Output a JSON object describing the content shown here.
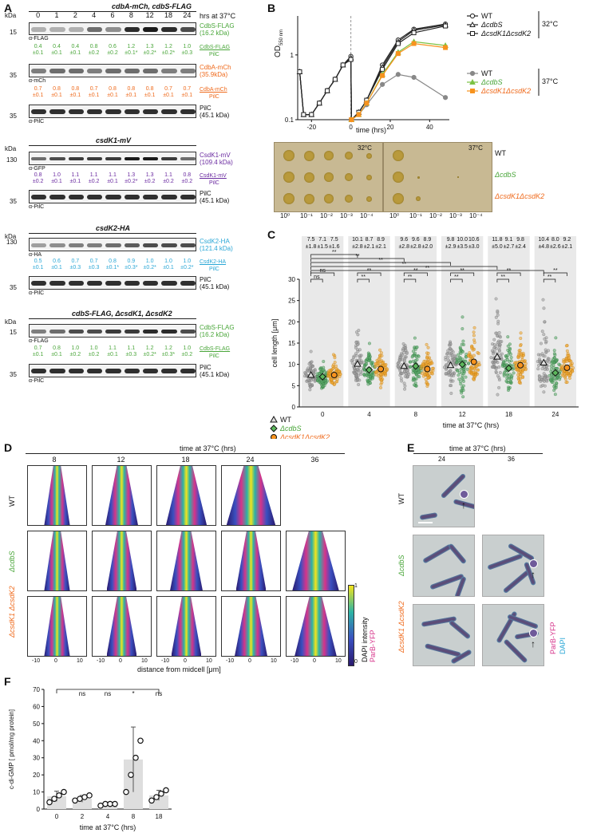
{
  "panels": {
    "A": "A",
    "B": "B",
    "C": "C",
    "D": "D",
    "E": "E",
    "F": "F"
  },
  "panelA": {
    "kda": "kDa",
    "timepoints": [
      "0",
      "1",
      "2",
      "4",
      "6",
      "8",
      "12",
      "18",
      "24"
    ],
    "time_unit": "hrs at 37°C",
    "blot1": {
      "title": "cdbA-mCh, cdbS-FLAG",
      "rows": [
        {
          "marker": "15",
          "antibody": "α-FLAG",
          "label": "CdbS-FLAG",
          "size": "(16.2 kDa)",
          "ratio_num": "CdbS-FLAG",
          "ratio_den": "PilC",
          "means": [
            "0.4",
            "0.4",
            "0.4",
            "0.8",
            "0.6",
            "1.2",
            "1.3",
            "1.2",
            "1.0"
          ],
          "sds": [
            "±0.1",
            "±0.1",
            "±0.1",
            "±0.2",
            "±0.2",
            "±0.1*",
            "±0.2*",
            "±0.2*",
            "±0.3"
          ]
        },
        {
          "marker": "35",
          "antibody": "α-mCh",
          "label": "CdbA-mCh",
          "size": "(35.9kDa)",
          "ratio_num": "CdbA-mCh",
          "ratio_den": "PilC",
          "means": [
            "0.7",
            "0.8",
            "0.8",
            "0.7",
            "0.8",
            "0.8",
            "0.8",
            "0.7",
            "0.7"
          ],
          "sds": [
            "±0.1",
            "±0.1",
            "±0.1",
            "±0.1",
            "±0.1",
            "±0.1",
            "±0.1",
            "±0.1",
            "±0.1"
          ]
        },
        {
          "marker": "35",
          "antibody": "α-PilC",
          "label": "PilC",
          "size": "(45.1 kDa)"
        }
      ]
    },
    "blot2": {
      "title": "csdK1-mV",
      "rows": [
        {
          "marker": "130",
          "antibody": "α-GFP",
          "label": "CsdK1-mV",
          "size": "(109.4 kDa)",
          "ratio_num": "CsdK1-mV",
          "ratio_den": "PilC",
          "means": [
            "0.8",
            "1.0",
            "1.1",
            "1.1",
            "1.1",
            "1.3",
            "1.3",
            "1.1",
            "0.8"
          ],
          "sds": [
            "±0.2",
            "±0.1",
            "±0.1",
            "±0.2",
            "±0.1",
            "±0.2*",
            "±0.2",
            "±0.2",
            "±0.2"
          ]
        },
        {
          "marker": "35",
          "antibody": "α-PilC",
          "label": "PilC",
          "size": "(45.1 kDa)"
        }
      ]
    },
    "blot3": {
      "title": "csdK2-HA",
      "rows": [
        {
          "marker": "130",
          "antibody": "α-HA",
          "label": "CsdK2-HA",
          "size": "(121.4 kDa)",
          "ratio_num": "CsdK2-HA",
          "ratio_den": "PilC",
          "means": [
            "0.5",
            "0.6",
            "0.7",
            "0.7",
            "0.8",
            "0.9",
            "1.0",
            "1.0",
            "1.0"
          ],
          "sds": [
            "±0.1",
            "±0.1",
            "±0.3",
            "±0.3",
            "±0.1*",
            "±0.3*",
            "±0.2*",
            "±0.1",
            "±0.2*"
          ]
        },
        {
          "marker": "35",
          "antibody": "α-PilC",
          "label": "PilC",
          "size": "(45.1 kDa)"
        }
      ]
    },
    "blot4": {
      "title": "cdbS-FLAG, ΔcsdK1, ΔcsdK2",
      "rows": [
        {
          "marker": "15",
          "antibody": "α-FLAG",
          "label": "CdbS-FLAG",
          "size": "(16.2 kDa)",
          "ratio_num": "CdbS-FLAG",
          "ratio_den": "PilC",
          "means": [
            "0.7",
            "0.8",
            "1.0",
            "1.0",
            "1.1",
            "1.1",
            "1.2",
            "1.2",
            "1.0"
          ],
          "sds": [
            "±0.1",
            "±0.1",
            "±0.2",
            "±0.2",
            "±0.1",
            "±0.3",
            "±0.2*",
            "±0.3*",
            "±0.2"
          ]
        },
        {
          "marker": "35",
          "antibody": "α-PilC",
          "label": "PilC",
          "size": "(45.1 kDa)"
        }
      ]
    }
  },
  "panelB": {
    "ylabel": "OD",
    "ylabel_sub": "550 nm",
    "xlabel": "time (hrs)",
    "yticks": [
      "0.1",
      "1"
    ],
    "xticks": [
      "-20",
      "0",
      "20",
      "40"
    ],
    "legend_32": [
      "WT",
      "ΔcdbS",
      "ΔcsdK1ΔcsdK2"
    ],
    "legend_37": [
      "WT",
      "ΔcdbS",
      "ΔcsdK1ΔcsdK2"
    ],
    "temp_32": "32°C",
    "temp_37": "37°C",
    "plate_temp_left": "32°C",
    "plate_temp_right": "37°C",
    "plate_rows": [
      "WT",
      "ΔcdbS",
      "ΔcsdK1ΔcsdK2"
    ],
    "dilutions": [
      "10⁰",
      "10⁻¹",
      "10⁻²",
      "10⁻³",
      "10⁻⁴"
    ]
  },
  "chart_data": [
    {
      "type": "line",
      "ylim": [
        0.1,
        4
      ],
      "xlim": [
        -27,
        50
      ],
      "series": [
        {
          "name": "WT",
          "x": [
            -26,
            -24,
            -20,
            -16,
            -12,
            -8,
            -4,
            0,
            0.3,
            4,
            8,
            16,
            24,
            32,
            48
          ],
          "y": [
            0.55,
            0.12,
            0.12,
            0.18,
            0.28,
            0.42,
            0.7,
            0.95,
            0.1,
            0.13,
            0.2,
            0.7,
            1.7,
            2.5,
            3.0
          ]
        },
        {
          "name": "ΔcdbS",
          "x": [
            -26,
            -24,
            -20,
            -16,
            -12,
            -8,
            -4,
            0,
            0.3,
            4,
            8,
            16,
            24,
            32,
            48
          ],
          "y": [
            0.55,
            0.12,
            0.12,
            0.18,
            0.28,
            0.42,
            0.7,
            0.9,
            0.1,
            0.13,
            0.2,
            0.65,
            1.6,
            2.4,
            2.9
          ]
        },
        {
          "name": "ΔcsdK1ΔcsdK2",
          "x": [
            -26,
            -24,
            -20,
            -16,
            -12,
            -8,
            -4,
            0,
            0.3,
            4,
            8,
            16,
            24,
            32,
            48
          ],
          "y": [
            0.55,
            0.12,
            0.12,
            0.18,
            0.28,
            0.42,
            0.7,
            0.85,
            0.1,
            0.13,
            0.2,
            0.6,
            1.5,
            2.2,
            2.8
          ]
        },
        {
          "name": "WT",
          "x": [
            0.3,
            4,
            8,
            16,
            24,
            32,
            48
          ],
          "y": [
            0.1,
            0.12,
            0.17,
            0.35,
            0.5,
            0.45,
            0.22
          ]
        },
        {
          "name": "ΔcdbS",
          "x": [
            0.3,
            4,
            8,
            16,
            24,
            32,
            48
          ],
          "y": [
            0.1,
            0.12,
            0.18,
            0.5,
            1.1,
            1.6,
            1.4
          ]
        },
        {
          "name": "ΔcsdK1ΔcsdK2",
          "x": [
            0.3,
            4,
            8,
            16,
            24,
            32,
            48
          ],
          "y": [
            0.1,
            0.12,
            0.18,
            0.48,
            1.05,
            1.5,
            1.3
          ]
        }
      ]
    },
    {
      "type": "scatter",
      "ylabel": "cell length [μm]",
      "xlabel": "time at 37°C (hrs)",
      "ylim": [
        0,
        30
      ],
      "yticks": [
        "0",
        "5",
        "10",
        "15",
        "20",
        "25",
        "30"
      ],
      "categories": [
        "0",
        "4",
        "8",
        "12",
        "18",
        "24"
      ],
      "series": [
        {
          "name": "WT",
          "means": [
            "7.5",
            "10.1",
            "9.6",
            "9.8",
            "11.8",
            "10.4"
          ],
          "sds": [
            "±1.8",
            "±2.8",
            "±2.8",
            "±2.9",
            "±5.0",
            "±4.8"
          ]
        },
        {
          "name": "ΔcdbS",
          "means": [
            "7.1",
            "8.7",
            "9.6",
            "10.0",
            "9.1",
            "8.0"
          ],
          "sds": [
            "±1.5",
            "±2.1",
            "±2.8",
            "±3.5",
            "±2.7",
            "±2.6"
          ]
        },
        {
          "name": "ΔcsdK1ΔcsdK2",
          "means": [
            "7.5",
            "8.9",
            "8.9",
            "10.6",
            "9.8",
            "9.2"
          ],
          "sds": [
            "±1.6",
            "±2.1",
            "±2.0",
            "±3.0",
            "±2.4",
            "±2.1"
          ]
        }
      ],
      "sig": [
        "ns",
        "ns",
        "**"
      ]
    },
    {
      "type": "bar",
      "ylabel": "c-di-GMP [ pmol/mg protein]",
      "xlabel": "time at 37°C (hrs)",
      "categories": [
        "0",
        "2",
        "4",
        "8",
        "18"
      ],
      "values": [
        7.5,
        6,
        3,
        29,
        8
      ],
      "errors": [
        3,
        2,
        1,
        19,
        3
      ],
      "points": [
        [
          4,
          6,
          8,
          10
        ],
        [
          5,
          6,
          7,
          8
        ],
        [
          2,
          3,
          3,
          3
        ],
        [
          10,
          20,
          30,
          40
        ],
        [
          5,
          7,
          9,
          11
        ]
      ],
      "ylim": [
        0,
        70
      ],
      "yticks": [
        "0",
        "10",
        "20",
        "30",
        "40",
        "50",
        "60",
        "70"
      ],
      "sig": [
        "ns",
        "ns",
        "*",
        "ns"
      ]
    }
  ],
  "panelD": {
    "title": "time at 37°C (hrs)",
    "times": [
      "8",
      "12",
      "18",
      "24",
      "36"
    ],
    "rows": [
      "WT",
      "ΔcdbS",
      "ΔcsdK1 ΔcsdK2"
    ],
    "xticks": [
      "-10",
      "0",
      "10"
    ],
    "xlabel": "distance from midcell [μm]",
    "colorbar_label": "DAPI intensity",
    "colorbar_label2": "ParB-YFP",
    "colorbar_top": "1",
    "colorbar_bottom": "0"
  },
  "panelE": {
    "title": "time at 37°C (hrs)",
    "times": [
      "24",
      "36"
    ],
    "rows": [
      "WT",
      "ΔcdbS",
      "ΔcsdK1 ΔcsdK2"
    ],
    "legend1": "ParB-YFP",
    "legend2": "DAPI"
  }
}
